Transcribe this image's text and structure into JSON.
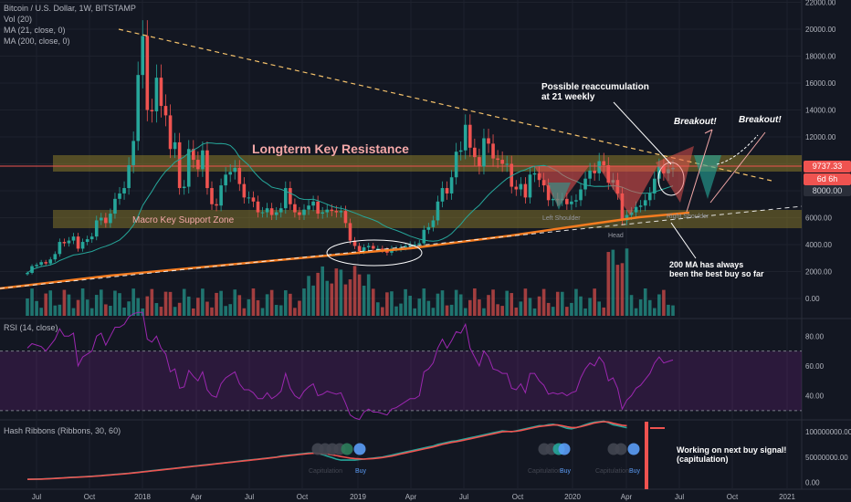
{
  "header": {
    "symbol": "Bitcoin / U.S. Dollar, 1W, BITSTAMP",
    "vol": "Vol (20)",
    "ma21": "MA (21, close, 0)",
    "ma200": "MA (200, close, 0)"
  },
  "price_boxes": {
    "last": "9737.33",
    "countdown": "6d 6h",
    "ma_level": "8000.00"
  },
  "annotations": {
    "resistance": "Longterm Key Resistance",
    "support": "Macro Key Support Zone",
    "reaccumulation": "Possible reaccumulation\nat 21 weekly",
    "breakout1": "Breakout!",
    "breakout2": "Breakout!",
    "left_shoulder": "Left Shoulder",
    "right_shoulder": "Right Shoulder",
    "head": "Head",
    "ma200_note": "200 MA has always\nbeen the best buy so far",
    "hash_note": "Working on next buy signal!\n(capitulation)",
    "capitulation": "Capitulation",
    "buy": "Buy"
  },
  "colors": {
    "background": "#131722",
    "up": "#26a69a",
    "down": "#ef5350",
    "ma21": "#26a69a",
    "ma200": "#f57c20",
    "trendline": "#f5c26b",
    "resistance_zone": "#8a7a2a",
    "rsi": "#9c27b0",
    "hash_fast": "#26a69a",
    "hash_slow": "#ef5350"
  },
  "chart_data": [
    {
      "type": "candlestick",
      "title": "Bitcoin / U.S. Dollar, 1W, BITSTAMP",
      "x_ticks": [
        "Jul",
        "Oct",
        "2018",
        "Apr",
        "Jul",
        "Oct",
        "2019",
        "Apr",
        "Jul",
        "Oct",
        "2020",
        "Apr",
        "Jul",
        "Oct",
        "2021"
      ],
      "y_ticks": [
        "0.00",
        "2000.00",
        "4000.00",
        "6000.00",
        "8000.00",
        "10000.00",
        "12000.00",
        "14000.00",
        "16000.00",
        "18000.00",
        "20000.00",
        "22000.00"
      ],
      "ylim": [
        -1000,
        22000
      ],
      "closes": [
        1900,
        2400,
        2500,
        2700,
        2600,
        2900,
        3300,
        4200,
        4100,
        4300,
        4600,
        3700,
        4200,
        4400,
        4600,
        5800,
        6000,
        5600,
        6300,
        7400,
        7800,
        8200,
        9900,
        11700,
        16600,
        19500,
        14000,
        13900,
        16400,
        14300,
        13600,
        11100,
        11600,
        8200,
        8300,
        11100,
        10300,
        9600,
        11000,
        8200,
        7000,
        6900,
        8400,
        9200,
        9400,
        9700,
        8500,
        7500,
        7500,
        7200,
        6400,
        6400,
        6700,
        6200,
        6400,
        6700,
        8200,
        7000,
        6400,
        6200,
        6600,
        6900,
        7200,
        6300,
        6400,
        6600,
        6500,
        6400,
        6500,
        5600,
        4300,
        3900,
        3500,
        3800,
        3900,
        3700,
        3700,
        3600,
        3400,
        3700,
        3700,
        3800,
        3900,
        4000,
        4000,
        4100,
        5100,
        5300,
        5800,
        7200,
        8200,
        7800,
        9000,
        10900,
        11000,
        12900,
        11200,
        10500,
        9800,
        11900,
        11500,
        10400,
        10300,
        10000,
        10000,
        8300,
        8100,
        8500,
        7500,
        9200,
        9300,
        8800,
        8400,
        7300,
        7400,
        7300,
        7400,
        7000,
        7200,
        7300,
        8100,
        8900,
        9500,
        9300,
        10200,
        9900,
        8600,
        8800,
        7800,
        5800,
        6200,
        6400,
        6800,
        6900,
        7300,
        7800,
        8900,
        9800,
        9300,
        9600,
        9700
      ]
    },
    {
      "type": "line",
      "title": "RSI (14, close)",
      "y_ticks": [
        "40.00",
        "60.00",
        "80.00"
      ],
      "ylim": [
        25,
        90
      ],
      "band": [
        30,
        70
      ],
      "values": [
        72,
        75,
        74,
        73,
        70,
        74,
        78,
        85,
        80,
        80,
        82,
        60,
        66,
        68,
        70,
        80,
        82,
        74,
        80,
        86,
        86,
        88,
        93,
        95,
        96,
        96,
        78,
        76,
        80,
        72,
        68,
        56,
        58,
        45,
        46,
        57,
        53,
        50,
        56,
        44,
        40,
        39,
        48,
        52,
        54,
        56,
        48,
        44,
        44,
        42,
        38,
        38,
        42,
        38,
        40,
        43,
        55,
        45,
        40,
        38,
        43,
        46,
        48,
        40,
        41,
        43,
        42,
        41,
        42,
        35,
        27,
        25,
        24,
        29,
        31,
        29,
        29,
        28,
        27,
        31,
        32,
        34,
        36,
        38,
        38,
        40,
        56,
        58,
        62,
        72,
        78,
        72,
        77,
        83,
        82,
        88,
        72,
        66,
        60,
        70,
        66,
        58,
        57,
        55,
        55,
        45,
        44,
        48,
        42,
        55,
        55,
        50,
        47,
        41,
        42,
        41,
        42,
        40,
        42,
        43,
        52,
        58,
        62,
        60,
        66,
        62,
        50,
        52,
        45,
        31,
        37,
        40,
        45,
        47,
        51,
        55,
        62,
        66,
        62,
        63,
        64
      ]
    },
    {
      "type": "line",
      "title": "Hash Ribbons (Ribbons, 30, 60)",
      "y_ticks": [
        "0.00",
        "50000000.00",
        "100000000.00"
      ],
      "ylim": [
        -10000000,
        120000000
      ],
      "series": [
        {
          "values": [
            6000000,
            6200000,
            6400000,
            6700000,
            7000000,
            7500000,
            8000000,
            8600000,
            9000000,
            9600000,
            10000000,
            10400000,
            11000000,
            11500000,
            12000000,
            12700000,
            13500000,
            14200000,
            15000000,
            15800000,
            16500000,
            17300000,
            18000000,
            19000000,
            20000000,
            21000000,
            22000000,
            23000000,
            24000000,
            25000000,
            26000000,
            27000000,
            28000000,
            29000000,
            30000000,
            31000000,
            32000000,
            33000000,
            34000000,
            35000000,
            36000000,
            37000000,
            38000000,
            39000000,
            40000000,
            41000000,
            42000000,
            43000000,
            44000000,
            45000000,
            46000000,
            47000000,
            48000000,
            49000000,
            50000000,
            52000000,
            53000000,
            54000000,
            55000000,
            56000000,
            57000000,
            58000000,
            58000000,
            57000000,
            55000000,
            52000000,
            49000000,
            46000000,
            44000000,
            44000000,
            44000000,
            44000000,
            45000000,
            46000000,
            47000000,
            48000000,
            49000000,
            50000000,
            52000000,
            54000000,
            56000000,
            58000000,
            60000000,
            62000000,
            64000000,
            66000000,
            68000000,
            70000000,
            72000000,
            75000000,
            77000000,
            79000000,
            81000000,
            82000000,
            84000000,
            86000000,
            88000000,
            90000000,
            92000000,
            94000000,
            96000000,
            98000000,
            100000000,
            102000000,
            101000000,
            100000000,
            102000000,
            104000000,
            106000000,
            108000000,
            110000000,
            112000000,
            112000000,
            114000000,
            115000000,
            113000000,
            110000000,
            107000000,
            106000000,
            108000000,
            111000000,
            114000000,
            117000000,
            119000000,
            120000000,
            121000000,
            118000000,
            114000000,
            112000000,
            110000000,
            108000000
          ]
        },
        {
          "values": [
            5800000,
            6000000,
            6200000,
            6500000,
            6800000,
            7200000,
            7700000,
            8300000,
            8800000,
            9300000,
            9800000,
            10200000,
            10700000,
            11200000,
            11700000,
            12300000,
            13000000,
            13800000,
            14500000,
            15300000,
            16000000,
            16800000,
            17600000,
            18500000,
            19500000,
            20500000,
            21500000,
            22500000,
            23500000,
            24500000,
            25500000,
            26500000,
            27500000,
            28500000,
            29500000,
            30500000,
            31500000,
            32500000,
            33500000,
            34500000,
            35500000,
            36500000,
            37500000,
            38500000,
            39500000,
            40500000,
            41500000,
            42500000,
            43500000,
            44500000,
            45500000,
            46500000,
            47500000,
            48500000,
            49500000,
            51000000,
            52000000,
            53000000,
            54000000,
            55000000,
            56000000,
            57000000,
            57500000,
            57500000,
            57000000,
            56000000,
            54500000,
            53000000,
            51000000,
            49500000,
            48000000,
            47000000,
            46500000,
            46000000,
            46500000,
            47000000,
            48000000,
            49000000,
            50500000,
            52000000,
            54000000,
            56000000,
            58000000,
            60000000,
            62000000,
            64000000,
            66000000,
            68000000,
            70000000,
            72500000,
            75000000,
            77000000,
            79000000,
            80500000,
            82000000,
            84000000,
            86000000,
            88000000,
            90000000,
            92000000,
            94000000,
            96000000,
            98000000,
            100000000,
            100500000,
            100500000,
            101000000,
            102500000,
            104500000,
            106500000,
            108500000,
            110500000,
            111500000,
            112500000,
            113500000,
            113500000,
            112000000,
            110000000,
            108500000,
            108500000,
            110000000,
            112500000,
            115000000,
            117500000,
            119000000,
            120000000,
            119500000,
            117000000,
            115000000,
            113000000,
            112000000
          ]
        }
      ]
    }
  ]
}
